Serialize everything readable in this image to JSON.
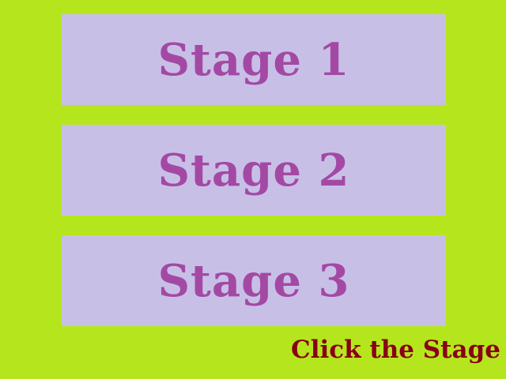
{
  "stages": [
    {
      "label": "Stage 1"
    },
    {
      "label": "Stage 2"
    },
    {
      "label": "Stage 3"
    }
  ],
  "hint": {
    "text": "Click the Stage"
  },
  "colors": {
    "background": "#b5e61d",
    "button_fill": "#c8bfe7",
    "button_text": "#a349a4",
    "hint_text": "#880015"
  }
}
